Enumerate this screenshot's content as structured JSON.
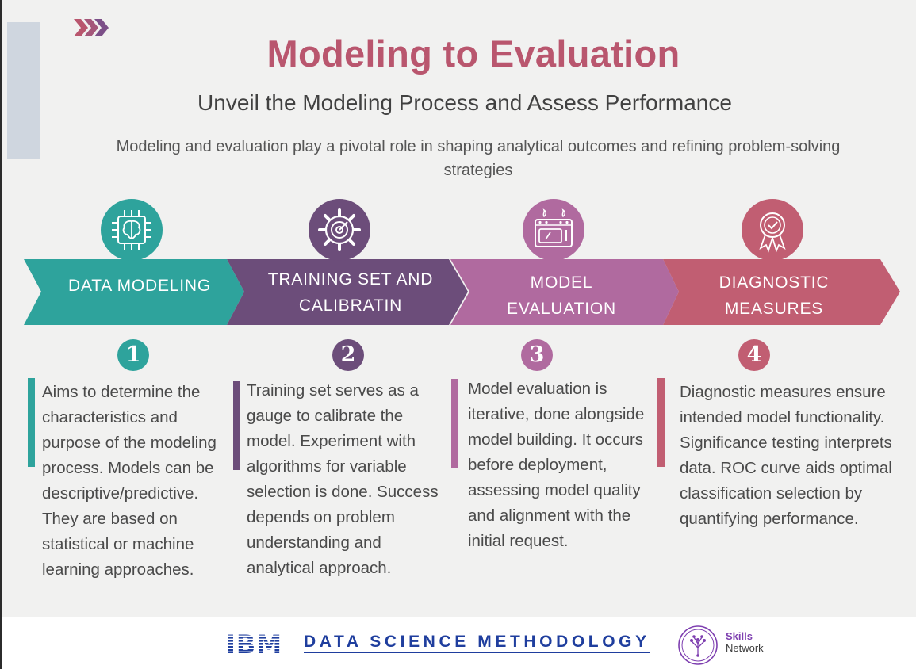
{
  "header": {
    "title": "Modeling to Evaluation",
    "subtitle": "Unveil the Modeling Process and Assess Performance",
    "description": "Modeling and evaluation play a pivotal role in shaping analytical outcomes and refining problem-solving strategies"
  },
  "stages": [
    {
      "label_lines": [
        "DATA MODELING"
      ],
      "number": "1",
      "icon": "brain-chip-icon",
      "color": "#2ea39c",
      "text": "Aims to determine the characteristics and purpose of the modeling process. Models can be descriptive/predictive. They are based on statistical or machine learning approaches."
    },
    {
      "label_lines": [
        "TRAINING SET AND",
        "CALIBRATIN"
      ],
      "number": "2",
      "icon": "gear-target-icon",
      "color": "#6c4d7a",
      "text": "Training set serves as a gauge to calibrate the model. Experiment with algorithms for variable selection is done. Success depends on problem understanding and analytical approach."
    },
    {
      "label_lines": [
        "MODEL",
        "EVALUATION"
      ],
      "number": "3",
      "icon": "oven-icon",
      "color": "#b06a9f",
      "text": "Model evaluation is iterative, done alongside model building. It occurs before deployment, assessing model quality and alignment with the initial request."
    },
    {
      "label_lines": [
        "DIAGNOSTIC",
        "MEASURES"
      ],
      "number": "4",
      "icon": "award-ribbon-icon",
      "color": "#c15e72",
      "text": "Diagnostic measures ensure intended model functionality. Significance testing interprets data. ROC curve aids optimal classification selection by quantifying performance."
    }
  ],
  "footer": {
    "ibm": "IBM",
    "methodology": "DATA SCIENCE METHODOLOGY",
    "skills": "Skills",
    "network": "Network"
  }
}
